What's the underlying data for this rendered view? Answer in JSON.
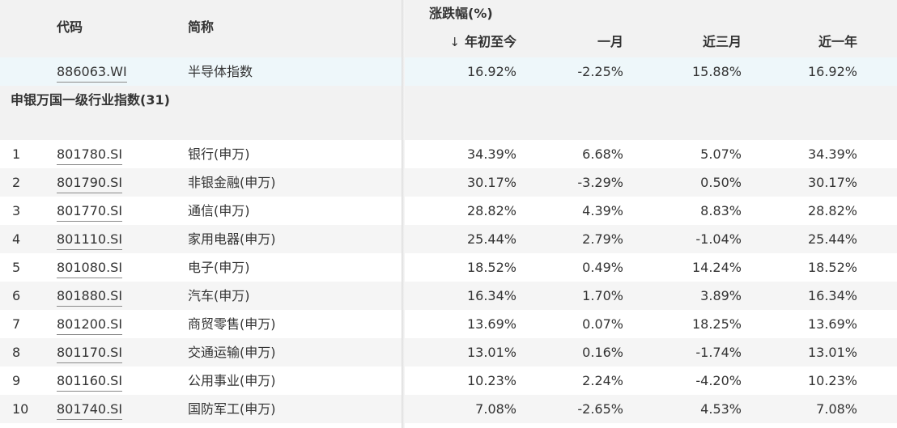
{
  "header": {
    "code": "代码",
    "name": "简称",
    "group": "涨跌幅(%)",
    "ytd": "年初至今",
    "m1": "一月",
    "m3": "近三月",
    "y1": "近一年",
    "sort_icon": "↓"
  },
  "highlight": {
    "code": "886063.WI",
    "name": "半导体指数",
    "ytd": "16.92%",
    "m1": "-2.25%",
    "m3": "15.88%",
    "y1": "16.92%"
  },
  "group": {
    "label": "申银万国一级行业指数(31)"
  },
  "rows": [
    {
      "idx": "1",
      "code": "801780.SI",
      "name": "银行(申万)",
      "ytd": "34.39%",
      "m1": "6.68%",
      "m3": "5.07%",
      "y1": "34.39%"
    },
    {
      "idx": "2",
      "code": "801790.SI",
      "name": "非银金融(申万)",
      "ytd": "30.17%",
      "m1": "-3.29%",
      "m3": "0.50%",
      "y1": "30.17%"
    },
    {
      "idx": "3",
      "code": "801770.SI",
      "name": "通信(申万)",
      "ytd": "28.82%",
      "m1": "4.39%",
      "m3": "8.83%",
      "y1": "28.82%"
    },
    {
      "idx": "4",
      "code": "801110.SI",
      "name": "家用电器(申万)",
      "ytd": "25.44%",
      "m1": "2.79%",
      "m3": "-1.04%",
      "y1": "25.44%"
    },
    {
      "idx": "5",
      "code": "801080.SI",
      "name": "电子(申万)",
      "ytd": "18.52%",
      "m1": "0.49%",
      "m3": "14.24%",
      "y1": "18.52%"
    },
    {
      "idx": "6",
      "code": "801880.SI",
      "name": "汽车(申万)",
      "ytd": "16.34%",
      "m1": "1.70%",
      "m3": "3.89%",
      "y1": "16.34%"
    },
    {
      "idx": "7",
      "code": "801200.SI",
      "name": "商贸零售(申万)",
      "ytd": "13.69%",
      "m1": "0.07%",
      "m3": "18.25%",
      "y1": "13.69%"
    },
    {
      "idx": "8",
      "code": "801170.SI",
      "name": "交通运输(申万)",
      "ytd": "13.01%",
      "m1": "0.16%",
      "m3": "-1.74%",
      "y1": "13.01%"
    },
    {
      "idx": "9",
      "code": "801160.SI",
      "name": "公用事业(申万)",
      "ytd": "10.23%",
      "m1": "2.24%",
      "m3": "-4.20%",
      "y1": "10.23%"
    },
    {
      "idx": "10",
      "code": "801740.SI",
      "name": "国防军工(申万)",
      "ytd": "7.08%",
      "m1": "-2.65%",
      "m3": "4.53%",
      "y1": "7.08%"
    }
  ]
}
